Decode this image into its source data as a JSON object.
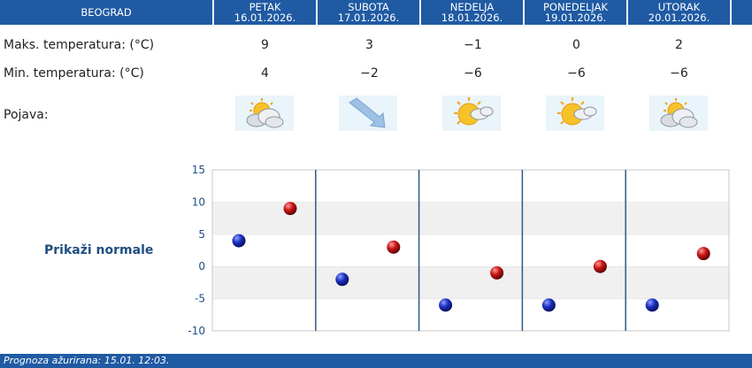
{
  "header": {
    "city": "BEOGRAD",
    "days": [
      {
        "day": "PETAK",
        "date": "16.01.2026."
      },
      {
        "day": "SUBOTA",
        "date": "17.01.2026."
      },
      {
        "day": "NEDELJA",
        "date": "18.01.2026."
      },
      {
        "day": "PONEDELJAK",
        "date": "19.01.2026."
      },
      {
        "day": "UTORAK",
        "date": "20.01.2026."
      }
    ]
  },
  "rows": {
    "max_label": "Maks. temperatura: (°C)",
    "min_label": "Min. temperatura: (°C)",
    "phen_label": "Pojava:",
    "max_values": [
      "9",
      "3",
      "−1",
      "0",
      "2"
    ],
    "min_values": [
      "4",
      "−2",
      "−6",
      "−6",
      "−6"
    ]
  },
  "icons": [
    "sun-behind-cloud-icon",
    "wind-arrow-icon",
    "sun-cloud-icon",
    "sun-cloud-icon",
    "sun-behind-cloud-icon"
  ],
  "normals_label": "Prikaži normale",
  "chart_data": {
    "type": "scatter",
    "categories": [
      "16.01.2026.",
      "17.01.2026.",
      "18.01.2026.",
      "19.01.2026.",
      "20.01.2026."
    ],
    "series": [
      {
        "values": [
          4,
          -2,
          -6,
          -6,
          -6
        ],
        "color": "#1a2fbf"
      },
      {
        "values": [
          9,
          3,
          -1,
          0,
          2
        ],
        "color": "#c81414"
      }
    ],
    "ylim": [
      -10,
      15
    ],
    "yticks": [
      "15",
      "10",
      "5",
      "0",
      "-5",
      "-10"
    ]
  },
  "footer": {
    "text": "Prognoza ažurirana:  15.01. 12:03."
  }
}
